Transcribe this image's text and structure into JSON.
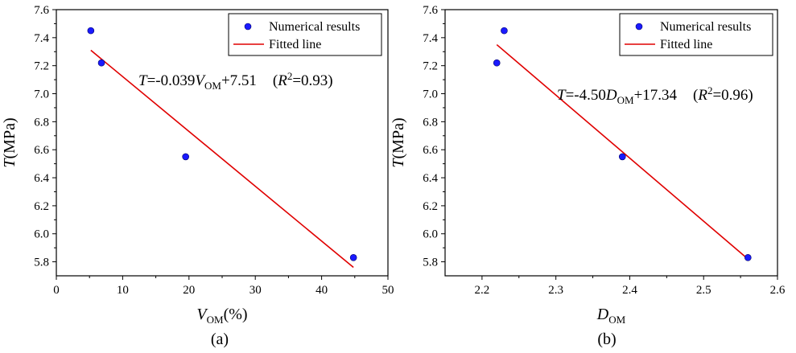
{
  "chart_data": [
    {
      "panel": "(a)",
      "type": "scatter",
      "ylabel": "T(MPa)",
      "xlabel_main": "V",
      "xlabel_sub": "OM",
      "xlabel_unit": "(%)",
      "xlim": [
        0,
        50
      ],
      "ylim": [
        5.7,
        7.6
      ],
      "xticks": [
        0,
        10,
        20,
        30,
        40,
        50
      ],
      "yticks": [
        5.8,
        6.0,
        6.2,
        6.4,
        6.6,
        6.8,
        7.0,
        7.2,
        7.4,
        7.6
      ],
      "series": [
        {
          "name": "Numerical results",
          "type": "scatter",
          "x": [
            5.2,
            6.8,
            19.5,
            44.8
          ],
          "y": [
            7.45,
            7.22,
            6.55,
            5.83
          ]
        },
        {
          "name": "Fitted line",
          "type": "line",
          "x": [
            5.2,
            44.8
          ],
          "y": [
            7.31,
            5.76
          ]
        }
      ],
      "equation": {
        "prefix": "T",
        "body": "=-0.039",
        "var": "V",
        "var_sub": "OM",
        "tail": "+7.51",
        "r2_open": "(",
        "r2_var": "R",
        "r2_sup": "2",
        "r2_tail": "=0.93)"
      }
    },
    {
      "panel": "(b)",
      "type": "scatter",
      "ylabel": "T(MPa)",
      "xlabel_main": "D",
      "xlabel_sub": "OM",
      "xlabel_unit": "",
      "xlim": [
        2.15,
        2.6
      ],
      "ylim": [
        5.7,
        7.6
      ],
      "xticks": [
        2.2,
        2.3,
        2.4,
        2.5,
        2.6
      ],
      "yticks": [
        5.8,
        6.0,
        6.2,
        6.4,
        6.6,
        6.8,
        7.0,
        7.2,
        7.4,
        7.6
      ],
      "series": [
        {
          "name": "Numerical results",
          "type": "scatter",
          "x": [
            2.22,
            2.23,
            2.39,
            2.56
          ],
          "y": [
            7.22,
            7.45,
            6.55,
            5.83
          ]
        },
        {
          "name": "Fitted line",
          "type": "line",
          "x": [
            2.22,
            2.56
          ],
          "y": [
            7.35,
            5.82
          ]
        }
      ],
      "equation": {
        "prefix": "T",
        "body": "=-4.50",
        "var": "D",
        "var_sub": "OM",
        "tail": "+17.34",
        "r2_open": "(",
        "r2_var": "R",
        "r2_sup": "2",
        "r2_tail": "=0.96)"
      }
    }
  ],
  "colors": {
    "points": "#1a1aff",
    "fit": "#e00000",
    "axis": "#000000"
  }
}
